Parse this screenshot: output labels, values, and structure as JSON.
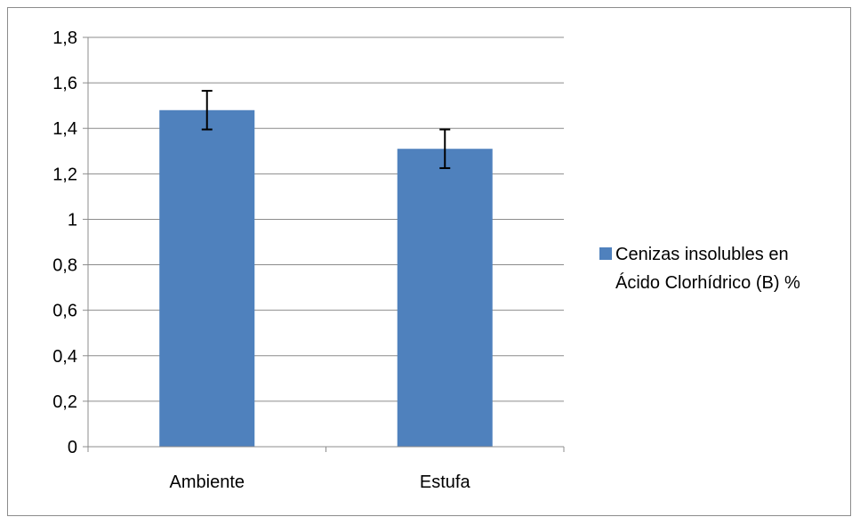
{
  "chart_data": {
    "type": "bar",
    "title": "",
    "xlabel": "",
    "ylabel": "",
    "categories": [
      "Ambiente",
      "Estufa"
    ],
    "series": [
      {
        "name": "Cenizas insolubles en Ácido Clorhídrico (B) %",
        "values": [
          1.48,
          1.31
        ],
        "error": [
          0.085,
          0.085
        ],
        "color": "#4f81bd"
      }
    ],
    "ylim": [
      0,
      1.8
    ],
    "yticks": [
      0,
      0.2,
      0.4,
      0.6,
      0.8,
      1,
      1.2,
      1.4,
      1.6,
      1.8
    ],
    "ytick_labels": [
      "0",
      "0,2",
      "0,4",
      "0,6",
      "0,8",
      "1",
      "1,2",
      "1,4",
      "1,6",
      "1,8"
    ],
    "grid": true,
    "legend": {
      "placement": "right",
      "lines": [
        "Cenizas insolubles en",
        "Ácido Clorhídrico (B) %"
      ]
    },
    "colors": {
      "bar": "#4f81bd",
      "grid": "#8c8c8c",
      "axis": "#8c8c8c",
      "error_bar": "#000000"
    }
  }
}
